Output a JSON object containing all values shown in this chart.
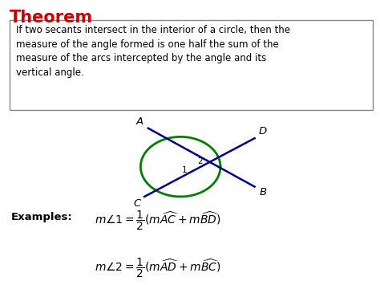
{
  "title": "Theorem",
  "title_color": "#cc0000",
  "title_fontsize": 15,
  "bg_color": "#ffffff",
  "theorem_text": "If two secants intersect in the interior of a circle, then the\nmeasure of the angle formed is one half the sum of the\nmeasure of the arcs intercepted by the angle and its\nvertical angle.",
  "theorem_fontsize": 8.5,
  "circle_color": "#008000",
  "line_color": "#00008b",
  "examples_label": "Examples:",
  "examples_fontsize": 9.5,
  "eq_fontsize": 10
}
